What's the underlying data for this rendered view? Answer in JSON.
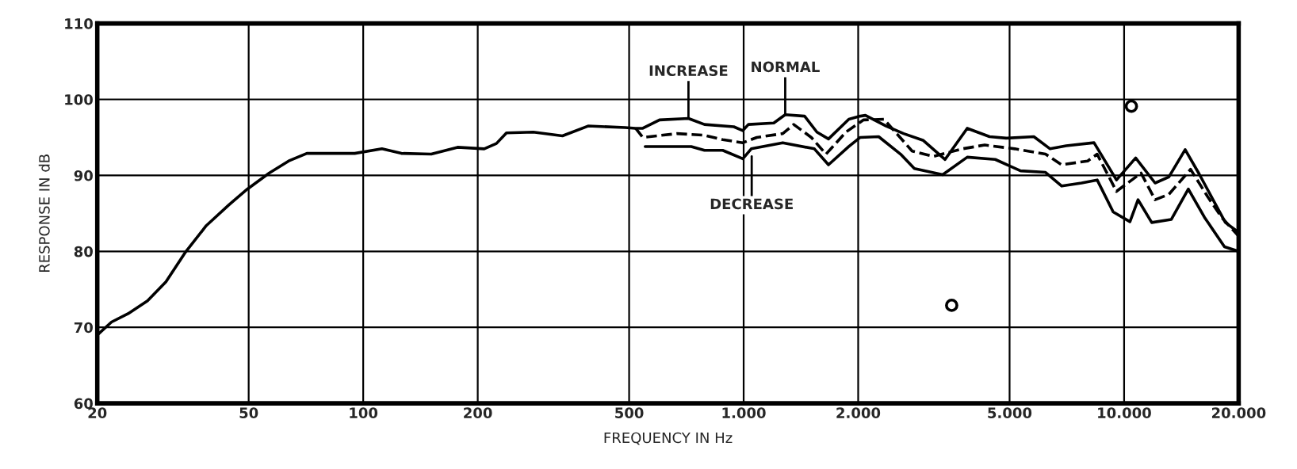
{
  "chart_data": {
    "type": "line",
    "xlabel": "FREQUENCY IN Hz",
    "ylabel": "RESPONSE IN dB",
    "log": "x",
    "grid": true,
    "marker": "none",
    "xlim": [
      20,
      20000
    ],
    "ylim": [
      60,
      110
    ],
    "xticks": [
      20,
      50,
      100,
      200,
      500,
      {
        "value": 1000,
        "label": "1.000"
      },
      {
        "value": 2000,
        "label": "2.000"
      },
      {
        "value": 5000,
        "label": "5.000"
      },
      {
        "value": 10000,
        "label": "10.000"
      },
      {
        "value": 20000,
        "label": "20.000"
      }
    ],
    "yticks": [
      60,
      70,
      80,
      90,
      100,
      110
    ],
    "series": [
      {
        "color": "#000000",
        "line_style": "solid",
        "x": [
          20,
          21.8,
          24.1,
          27.1,
          30.3,
          34,
          38.7,
          44.3,
          49.6,
          56.6,
          63.7,
          71.1,
          95,
          112,
          126,
          151,
          177,
          208,
          224,
          238,
          280,
          334,
          390,
          488,
          520,
          543,
          601,
          716,
          789,
          942,
          995,
          1029,
          1200,
          1286,
          1446,
          1558,
          1671,
          1890,
          2025,
          2090,
          2369,
          2633,
          2967,
          3384,
          3870,
          4429,
          4897,
          5791,
          6389,
          7044,
          8335,
          9549,
          10725,
          12062,
          13110,
          14470,
          15747,
          17129,
          18460,
          20000
        ],
        "values": [
          69,
          70.7,
          71.8,
          73.5,
          76,
          79.8,
          83.4,
          86.1,
          88.2,
          90.3,
          91.9,
          92.9,
          92.9,
          93.5,
          92.9,
          92.8,
          93.7,
          93.5,
          94.2,
          95.6,
          95.7,
          95.2,
          96.5,
          96.3,
          96.2,
          96.2,
          97.3,
          97.5,
          96.7,
          96.4,
          95.9,
          96.7,
          96.9,
          98,
          97.8,
          95.7,
          94.8,
          97.4,
          97.8,
          97.9,
          96.5,
          95.5,
          94.6,
          92.1,
          96.2,
          95.1,
          94.9,
          95.1,
          93.5,
          93.9,
          94.3,
          89.4,
          92.3,
          89,
          89.8,
          93.4,
          90.2,
          86.8,
          83.8,
          82.5
        ]
      },
      {
        "color": "#000000",
        "line_style": "dashed",
        "x": [
          520,
          543,
          667,
          786,
          881,
          995,
          1083,
          1267,
          1354,
          1506,
          1646,
          1857,
          2063,
          2337,
          2773,
          3158,
          3755,
          4302,
          5163,
          6215,
          6855,
          8023,
          8496,
          9549,
          11080,
          12062,
          13110,
          14950,
          16580,
          18030,
          20000
        ],
        "values": [
          96.2,
          95,
          95.5,
          95.3,
          94.7,
          94.3,
          95,
          95.5,
          96.7,
          95,
          92.8,
          95.7,
          97.3,
          97.4,
          93.2,
          92.5,
          93.5,
          94,
          93.5,
          92.8,
          91.4,
          91.9,
          92.8,
          87.9,
          90.3,
          86.8,
          87.5,
          90.8,
          87.2,
          84.5,
          82
        ]
      },
      {
        "color": "#000000",
        "line_style": "solid",
        "x": [
          551,
          728,
          789,
          881,
          995,
          1047,
          1267,
          1534,
          1671,
          1890,
          2025,
          2264,
          2585,
          2810,
          3335,
          3870,
          4584,
          5343,
          6215,
          6855,
          7730,
          8496,
          9360,
          10360,
          10880,
          11820,
          13300,
          14750,
          16260,
          18360,
          20000
        ],
        "values": [
          93.8,
          93.8,
          93.3,
          93.3,
          92.2,
          93.5,
          94.3,
          93.5,
          91.4,
          93.8,
          95,
          95.1,
          92.8,
          90.9,
          90.1,
          92.4,
          92.1,
          90.6,
          90.4,
          88.6,
          89,
          89.4,
          85.2,
          83.9,
          86.8,
          83.8,
          84.2,
          88.2,
          84.5,
          80.6,
          80
        ]
      },
      {
        "type": "scatter",
        "color": "#000000",
        "marker": "circle",
        "x": [
          3522,
          10450
        ],
        "values": [
          72.9,
          99.1
        ]
      }
    ],
    "annotations": [
      {
        "text": "INCREASE",
        "x": 716,
        "y": 97.5
      },
      {
        "text": "NORMAL",
        "x": 1286,
        "y": 98
      },
      {
        "text": "DECREASE",
        "x": 1050,
        "y": 92.5
      }
    ]
  }
}
